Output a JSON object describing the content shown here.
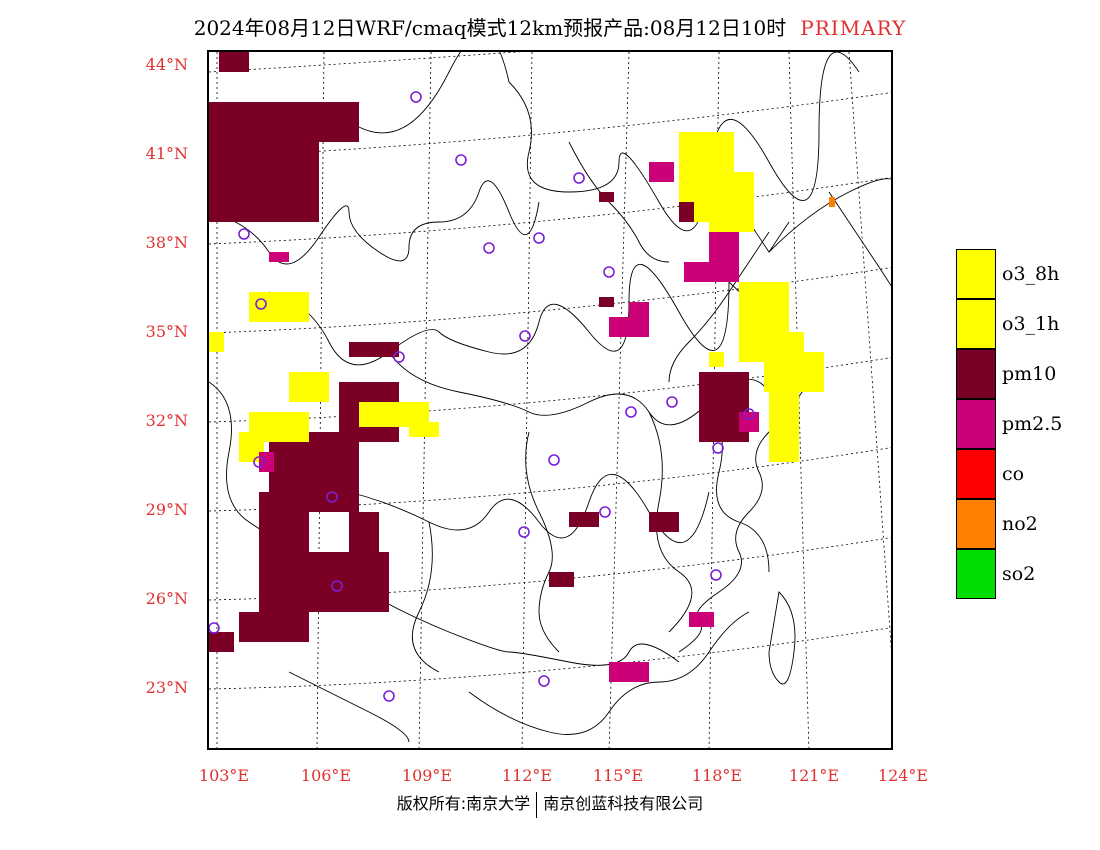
{
  "title": {
    "main": "2024年08月12日WRF/cmaq模式12km预报产品:08月12日10时",
    "tag": "PRIMARY"
  },
  "lat_labels": [
    "44°N",
    "41°N",
    "38°N",
    "35°N",
    "32°N",
    "29°N",
    "26°N",
    "23°N"
  ],
  "lon_labels": [
    "103°E",
    "106°E",
    "109°E",
    "112°E",
    "115°E",
    "118°E",
    "121°E",
    "124°E"
  ],
  "legend": [
    {
      "label": "o3_8h",
      "color": "#ffff00"
    },
    {
      "label": "o3_1h",
      "color": "#ffff00"
    },
    {
      "label": "pm10",
      "color": "#7a0026"
    },
    {
      "label": "pm2.5",
      "color": "#cc0077"
    },
    {
      "label": "co",
      "color": "#ff0000"
    },
    {
      "label": "no2",
      "color": "#ff8000"
    },
    {
      "label": "so2",
      "color": "#00dd00"
    }
  ],
  "footer": {
    "left": "版权所有:南京大学",
    "right": "南京创蓝科技有限公司"
  },
  "station_marker_color": "#7b1fd6"
}
